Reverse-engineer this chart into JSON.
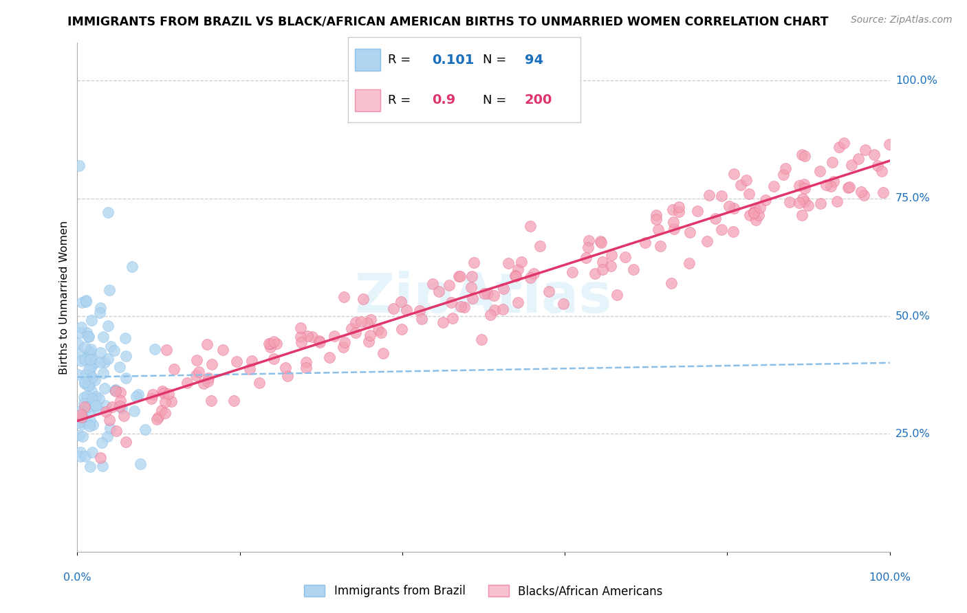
{
  "title": "IMMIGRANTS FROM BRAZIL VS BLACK/AFRICAN AMERICAN BIRTHS TO UNMARRIED WOMEN CORRELATION CHART",
  "source": "Source: ZipAtlas.com",
  "ylabel": "Births to Unmarried Women",
  "ytick_labels": [
    "25.0%",
    "50.0%",
    "75.0%",
    "100.0%"
  ],
  "ytick_positions": [
    0.25,
    0.5,
    0.75,
    1.0
  ],
  "legend_label1": "Immigrants from Brazil",
  "legend_label2": "Blacks/African Americans",
  "r1": 0.101,
  "n1": 94,
  "r2": 0.9,
  "n2": 200,
  "color_blue": "#8bbfe8",
  "color_blue_fill": "#aed4f0",
  "color_pink": "#f4a0b5",
  "color_blue_dark": "#1a6fbd",
  "color_pink_dark": "#e0356a",
  "watermark": "ZipAtlas",
  "title_fontsize": 12.5,
  "source_fontsize": 10,
  "legend_fontsize": 14
}
